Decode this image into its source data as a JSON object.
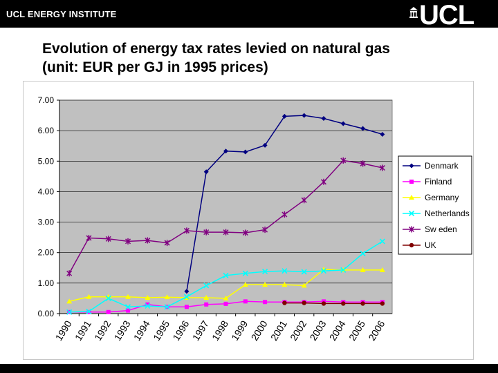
{
  "header": {
    "institute": "UCL ENERGY INSTITUTE",
    "logo_text": "UCL",
    "logo_icon": "portico-building-icon"
  },
  "page": {
    "title_line1": "Evolution of energy tax rates levied on natural gas",
    "title_line2": "(unit: EUR per GJ in 1995 prices)"
  },
  "colors": {
    "header_bg": "#000000",
    "plot_bg": "#c0c0c0",
    "Denmark": "#000080",
    "Finland": "#ff00ff",
    "Germany": "#ffff00",
    "Netherlands": "#00ffff",
    "Sweden": "#800080",
    "UK": "#800000"
  },
  "chart_data": {
    "type": "line",
    "title": "",
    "xlabel": "",
    "ylabel": "",
    "ylim": [
      0,
      7
    ],
    "yticks": [
      "0.00",
      "1.00",
      "2.00",
      "3.00",
      "4.00",
      "5.00",
      "6.00",
      "7.00"
    ],
    "categories": [
      "1990",
      "1991",
      "1992",
      "1993",
      "1994",
      "1995",
      "1996",
      "1997",
      "1998",
      "1999",
      "2000",
      "2001",
      "2002",
      "2003",
      "2004",
      "2005",
      "2006"
    ],
    "grid": "horizontal",
    "legend_position": "right",
    "series": [
      {
        "name": "Denmark",
        "marker": "diamond",
        "values": [
          null,
          null,
          null,
          null,
          null,
          null,
          0.73,
          4.65,
          5.33,
          5.3,
          5.52,
          6.47,
          6.5,
          6.4,
          6.23,
          6.07,
          5.88
        ]
      },
      {
        "name": "Finland",
        "marker": "square",
        "values": [
          0.05,
          0.05,
          0.05,
          0.1,
          0.3,
          0.22,
          0.22,
          0.3,
          0.32,
          0.4,
          0.38,
          0.38,
          0.38,
          0.4,
          0.38,
          0.38,
          0.38
        ]
      },
      {
        "name": "Germany",
        "marker": "triangle",
        "values": [
          0.4,
          0.55,
          0.55,
          0.55,
          0.52,
          0.54,
          0.52,
          0.52,
          0.5,
          0.95,
          0.95,
          0.95,
          0.92,
          1.45,
          1.43,
          1.43,
          1.43
        ]
      },
      {
        "name": "Netherlands",
        "marker": "x",
        "values": [
          0.05,
          0.07,
          0.5,
          0.22,
          0.25,
          0.22,
          0.55,
          0.92,
          1.25,
          1.32,
          1.38,
          1.4,
          1.37,
          1.4,
          1.43,
          1.97,
          2.37
        ]
      },
      {
        "name": "Sweden",
        "marker": "star",
        "values": [
          1.32,
          2.48,
          2.45,
          2.37,
          2.4,
          2.32,
          2.72,
          2.67,
          2.67,
          2.65,
          2.75,
          3.25,
          3.72,
          4.32,
          5.02,
          4.92,
          4.78
        ]
      },
      {
        "name": "UK",
        "marker": "circle",
        "values": [
          null,
          null,
          null,
          null,
          null,
          null,
          null,
          null,
          null,
          null,
          null,
          0.35,
          0.35,
          0.33,
          0.33,
          0.33,
          0.33
        ]
      }
    ],
    "legend": [
      "Denmark",
      "Finland",
      "Germany",
      "Netherlands",
      "Sw eden",
      "UK"
    ]
  }
}
